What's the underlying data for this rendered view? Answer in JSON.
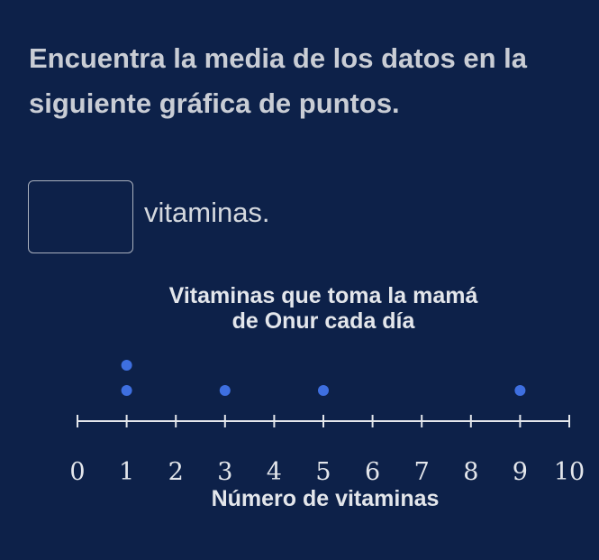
{
  "question": {
    "text": "Encuentra la media de los datos en la siguiente gráfica de puntos."
  },
  "answer": {
    "value": "",
    "placeholder": "",
    "unit_label": "vitaminas."
  },
  "colors": {
    "background": "#0d2149",
    "dot": "#3e6fe0",
    "axis": "#e3e6eb"
  },
  "chart_data": {
    "type": "scatter",
    "subtype": "dot-plot",
    "title_lines": [
      "Vitaminas que toma la mamá",
      "de Onur cada día"
    ],
    "xlabel": "Número de vitaminas",
    "ylabel": "",
    "xlim": [
      0,
      10
    ],
    "ticks": [
      0,
      1,
      2,
      3,
      4,
      5,
      6,
      7,
      8,
      9,
      10
    ],
    "tick_labels": [
      "0",
      "1",
      "2",
      "3",
      "4",
      "5",
      "6",
      "7",
      "8",
      "9",
      "10"
    ],
    "x": [
      1,
      3,
      5,
      9
    ],
    "values": [
      2,
      1,
      1,
      1
    ]
  }
}
